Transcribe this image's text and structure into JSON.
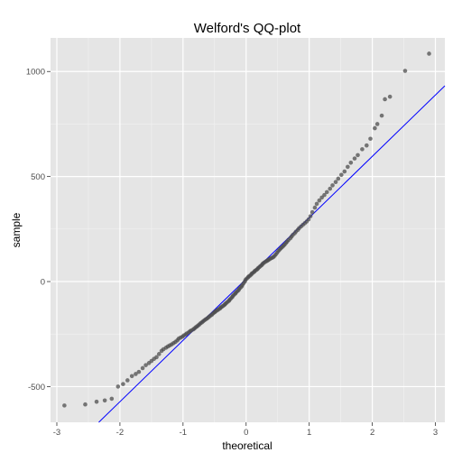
{
  "chart_data": {
    "type": "scatter",
    "title": "Welford's QQ-plot",
    "xlabel": "theoretical",
    "ylabel": "sample",
    "xlim": [
      -3.1,
      3.15
    ],
    "ylim": [
      -670,
      1160
    ],
    "x_ticks": [
      -3,
      -2,
      -1,
      0,
      1,
      2,
      3
    ],
    "x_tick_labels": [
      "-3",
      "-2",
      "-1",
      "0",
      "1",
      "2",
      "3"
    ],
    "y_ticks": [
      -500,
      0,
      500,
      1000
    ],
    "y_tick_labels": [
      "-500",
      "0",
      "500",
      "1000"
    ],
    "grid": true,
    "legend": "none",
    "panel_background": "#e5e5e5",
    "grid_major_color": "#ffffff",
    "grid_minor_color": "#f2f2f2",
    "point_color": "#4d4d4d",
    "reference_line_color": "#0000ff",
    "reference_line": {
      "intercept": 12,
      "slope": 292
    },
    "series": [
      {
        "points": [
          [
            -2.88,
            -590
          ],
          [
            -2.55,
            -585
          ],
          [
            -2.37,
            -572
          ],
          [
            -2.24,
            -566
          ],
          [
            -2.13,
            -558
          ],
          [
            -2.03,
            -500
          ],
          [
            -1.95,
            -488
          ],
          [
            -1.88,
            -470
          ],
          [
            -1.81,
            -450
          ],
          [
            -1.75,
            -440
          ],
          [
            -1.7,
            -430
          ],
          [
            -1.64,
            -412
          ],
          [
            -1.59,
            -398
          ],
          [
            -1.54,
            -388
          ],
          [
            -1.5,
            -378
          ],
          [
            -1.46,
            -368
          ],
          [
            -1.42,
            -360
          ],
          [
            -1.38,
            -345
          ],
          [
            -1.34,
            -330
          ],
          [
            -1.31,
            -322
          ],
          [
            -1.27,
            -315
          ],
          [
            -1.24,
            -309
          ],
          [
            -1.21,
            -304
          ],
          [
            -1.18,
            -299
          ],
          [
            -1.15,
            -293
          ],
          [
            -1.12,
            -287
          ],
          [
            -1.09,
            -280
          ],
          [
            -1.07,
            -272
          ],
          [
            -1.04,
            -267
          ],
          [
            -1.01,
            -263
          ],
          [
            -0.99,
            -257
          ],
          [
            -0.96,
            -252
          ],
          [
            -0.94,
            -247
          ],
          [
            -0.91,
            -242
          ],
          [
            -0.89,
            -237
          ],
          [
            -0.87,
            -233
          ],
          [
            -0.84,
            -228
          ],
          [
            -0.82,
            -224
          ],
          [
            -0.8,
            -218
          ],
          [
            -0.78,
            -214
          ],
          [
            -0.76,
            -209
          ],
          [
            -0.74,
            -204
          ],
          [
            -0.72,
            -198
          ],
          [
            -0.7,
            -194
          ],
          [
            -0.68,
            -189
          ],
          [
            -0.66,
            -184
          ],
          [
            -0.64,
            -180
          ],
          [
            -0.62,
            -176
          ],
          [
            -0.6,
            -171
          ],
          [
            -0.58,
            -166
          ],
          [
            -0.56,
            -161
          ],
          [
            -0.54,
            -157
          ],
          [
            -0.52,
            -151
          ],
          [
            -0.5,
            -146
          ],
          [
            -0.49,
            -143
          ],
          [
            -0.47,
            -139
          ],
          [
            -0.45,
            -135
          ],
          [
            -0.43,
            -131
          ],
          [
            -0.41,
            -127
          ],
          [
            -0.4,
            -123
          ],
          [
            -0.38,
            -119
          ],
          [
            -0.36,
            -115
          ],
          [
            -0.34,
            -110
          ],
          [
            -0.33,
            -106
          ],
          [
            -0.31,
            -101
          ],
          [
            -0.29,
            -96
          ],
          [
            -0.27,
            -91
          ],
          [
            -0.26,
            -86
          ],
          [
            -0.24,
            -80
          ],
          [
            -0.22,
            -74
          ],
          [
            -0.21,
            -68
          ],
          [
            -0.19,
            -62
          ],
          [
            -0.17,
            -57
          ],
          [
            -0.16,
            -52
          ],
          [
            -0.14,
            -46
          ],
          [
            -0.12,
            -41
          ],
          [
            -0.11,
            -35
          ],
          [
            -0.09,
            -29
          ],
          [
            -0.07,
            -23
          ],
          [
            -0.06,
            -16
          ],
          [
            -0.04,
            -8
          ],
          [
            -0.02,
            0
          ],
          [
            -0.01,
            8
          ],
          [
            0.01,
            14
          ],
          [
            0.03,
            20
          ],
          [
            0.04,
            24
          ],
          [
            0.06,
            28
          ],
          [
            0.08,
            33
          ],
          [
            0.09,
            38
          ],
          [
            0.11,
            42
          ],
          [
            0.13,
            47
          ],
          [
            0.14,
            51
          ],
          [
            0.16,
            55
          ],
          [
            0.18,
            59
          ],
          [
            0.19,
            64
          ],
          [
            0.21,
            69
          ],
          [
            0.23,
            74
          ],
          [
            0.25,
            79
          ],
          [
            0.26,
            84
          ],
          [
            0.28,
            89
          ],
          [
            0.3,
            93
          ],
          [
            0.32,
            97
          ],
          [
            0.34,
            100
          ],
          [
            0.35,
            103
          ],
          [
            0.37,
            106
          ],
          [
            0.39,
            110
          ],
          [
            0.41,
            113
          ],
          [
            0.43,
            116
          ],
          [
            0.45,
            122
          ],
          [
            0.47,
            129
          ],
          [
            0.49,
            137
          ],
          [
            0.51,
            145
          ],
          [
            0.53,
            152
          ],
          [
            0.55,
            158
          ],
          [
            0.57,
            164
          ],
          [
            0.59,
            170
          ],
          [
            0.61,
            176
          ],
          [
            0.63,
            183
          ],
          [
            0.65,
            190
          ],
          [
            0.67,
            198
          ],
          [
            0.7,
            206
          ],
          [
            0.72,
            214
          ],
          [
            0.74,
            222
          ],
          [
            0.77,
            230
          ],
          [
            0.79,
            238
          ],
          [
            0.82,
            246
          ],
          [
            0.84,
            254
          ],
          [
            0.87,
            262
          ],
          [
            0.9,
            270
          ],
          [
            0.93,
            278
          ],
          [
            0.96,
            286
          ],
          [
            0.99,
            296
          ],
          [
            1.02,
            311
          ],
          [
            1.05,
            330
          ],
          [
            1.09,
            352
          ],
          [
            1.12,
            370
          ],
          [
            1.16,
            386
          ],
          [
            1.2,
            400
          ],
          [
            1.24,
            412
          ],
          [
            1.28,
            426
          ],
          [
            1.33,
            442
          ],
          [
            1.37,
            458
          ],
          [
            1.42,
            474
          ],
          [
            1.46,
            490
          ],
          [
            1.51,
            508
          ],
          [
            1.56,
            524
          ],
          [
            1.61,
            546
          ],
          [
            1.66,
            566
          ],
          [
            1.72,
            586
          ],
          [
            1.77,
            602
          ],
          [
            1.84,
            630
          ],
          [
            1.91,
            648
          ],
          [
            1.97,
            680
          ],
          [
            2.04,
            730
          ],
          [
            2.08,
            750
          ],
          [
            2.15,
            790
          ],
          [
            2.2,
            868
          ],
          [
            2.28,
            880
          ],
          [
            2.52,
            1003
          ],
          [
            2.9,
            1085
          ]
        ]
      }
    ]
  }
}
